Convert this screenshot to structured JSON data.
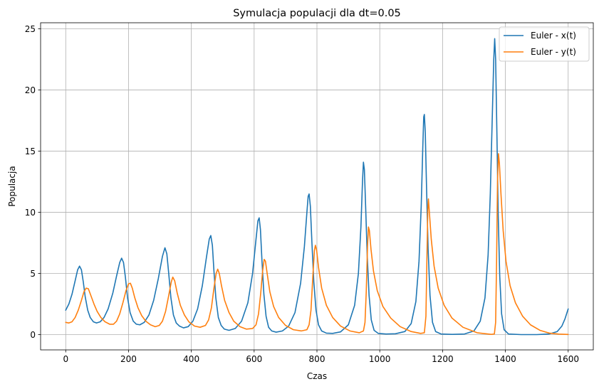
{
  "chart_data": {
    "type": "line",
    "title": "Symulacja populacji dla dt=0.05",
    "xlabel": "Czas",
    "ylabel": "Populacja",
    "xlim": [
      -80,
      1680
    ],
    "ylim": [
      -1.25,
      25.5
    ],
    "xticks": [
      0,
      200,
      400,
      600,
      800,
      1000,
      1200,
      1400,
      1600
    ],
    "yticks": [
      0,
      5,
      10,
      15,
      20,
      25
    ],
    "grid": true,
    "legend_position": "upper-right",
    "series": [
      {
        "name": "Euler - x(t)",
        "color": "#1f77b4",
        "points": [
          [
            0,
            2.0
          ],
          [
            10,
            2.5
          ],
          [
            20,
            3.3
          ],
          [
            30,
            4.4
          ],
          [
            38,
            5.3
          ],
          [
            44,
            5.6
          ],
          [
            50,
            5.3
          ],
          [
            56,
            4.3
          ],
          [
            62,
            3.1
          ],
          [
            70,
            2.0
          ],
          [
            78,
            1.4
          ],
          [
            88,
            1.05
          ],
          [
            98,
            0.95
          ],
          [
            110,
            1.05
          ],
          [
            122,
            1.4
          ],
          [
            135,
            2.1
          ],
          [
            150,
            3.4
          ],
          [
            162,
            4.8
          ],
          [
            172,
            5.9
          ],
          [
            178,
            6.25
          ],
          [
            184,
            5.9
          ],
          [
            190,
            4.7
          ],
          [
            197,
            3.0
          ],
          [
            205,
            1.8
          ],
          [
            215,
            1.1
          ],
          [
            225,
            0.85
          ],
          [
            236,
            0.8
          ],
          [
            250,
            1.0
          ],
          [
            265,
            1.6
          ],
          [
            280,
            2.8
          ],
          [
            295,
            4.6
          ],
          [
            308,
            6.4
          ],
          [
            316,
            7.1
          ],
          [
            322,
            6.6
          ],
          [
            328,
            5.0
          ],
          [
            335,
            3.0
          ],
          [
            343,
            1.6
          ],
          [
            352,
            0.95
          ],
          [
            362,
            0.7
          ],
          [
            375,
            0.55
          ],
          [
            390,
            0.65
          ],
          [
            405,
            1.1
          ],
          [
            420,
            2.1
          ],
          [
            435,
            4.0
          ],
          [
            448,
            6.3
          ],
          [
            457,
            7.8
          ],
          [
            462,
            8.1
          ],
          [
            467,
            7.3
          ],
          [
            472,
            5.2
          ],
          [
            478,
            3.0
          ],
          [
            486,
            1.4
          ],
          [
            495,
            0.75
          ],
          [
            505,
            0.45
          ],
          [
            520,
            0.35
          ],
          [
            540,
            0.5
          ],
          [
            560,
            1.1
          ],
          [
            580,
            2.6
          ],
          [
            595,
            5.0
          ],
          [
            606,
            7.8
          ],
          [
            612,
            9.3
          ],
          [
            616,
            9.55
          ],
          [
            620,
            8.6
          ],
          [
            625,
            6.0
          ],
          [
            631,
            3.3
          ],
          [
            638,
            1.5
          ],
          [
            646,
            0.6
          ],
          [
            656,
            0.3
          ],
          [
            670,
            0.2
          ],
          [
            690,
            0.3
          ],
          [
            710,
            0.7
          ],
          [
            730,
            1.8
          ],
          [
            748,
            4.2
          ],
          [
            760,
            7.2
          ],
          [
            768,
            10.0
          ],
          [
            772,
            11.3
          ],
          [
            775,
            11.5
          ],
          [
            779,
            10.5
          ],
          [
            784,
            7.5
          ],
          [
            790,
            4.3
          ],
          [
            797,
            2.0
          ],
          [
            805,
            0.8
          ],
          [
            815,
            0.3
          ],
          [
            830,
            0.12
          ],
          [
            850,
            0.1
          ],
          [
            875,
            0.22
          ],
          [
            900,
            0.8
          ],
          [
            920,
            2.4
          ],
          [
            932,
            5.0
          ],
          [
            940,
            8.8
          ],
          [
            945,
            12.5
          ],
          [
            948,
            14.1
          ],
          [
            951,
            13.5
          ],
          [
            955,
            10.5
          ],
          [
            960,
            6.5
          ],
          [
            966,
            3.2
          ],
          [
            973,
            1.2
          ],
          [
            982,
            0.35
          ],
          [
            995,
            0.1
          ],
          [
            1020,
            0.05
          ],
          [
            1050,
            0.07
          ],
          [
            1080,
            0.25
          ],
          [
            1100,
            0.9
          ],
          [
            1115,
            2.7
          ],
          [
            1125,
            6.0
          ],
          [
            1132,
            10.5
          ],
          [
            1137,
            15.3
          ],
          [
            1140,
            17.8
          ],
          [
            1142,
            18.0
          ],
          [
            1145,
            16.5
          ],
          [
            1149,
            12.0
          ],
          [
            1154,
            7.0
          ],
          [
            1160,
            3.2
          ],
          [
            1168,
            1.0
          ],
          [
            1178,
            0.25
          ],
          [
            1195,
            0.05
          ],
          [
            1230,
            0.02
          ],
          [
            1270,
            0.05
          ],
          [
            1300,
            0.3
          ],
          [
            1320,
            1.1
          ],
          [
            1335,
            3.0
          ],
          [
            1345,
            6.5
          ],
          [
            1352,
            11.5
          ],
          [
            1358,
            17.5
          ],
          [
            1363,
            22.5
          ],
          [
            1366,
            24.2
          ],
          [
            1369,
            22.5
          ],
          [
            1373,
            16.5
          ],
          [
            1377,
            10.0
          ],
          [
            1382,
            4.8
          ],
          [
            1388,
            1.7
          ],
          [
            1396,
            0.4
          ],
          [
            1410,
            0.05
          ],
          [
            1450,
            0.0
          ],
          [
            1500,
            0.0
          ],
          [
            1540,
            0.05
          ],
          [
            1565,
            0.25
          ],
          [
            1580,
            0.7
          ],
          [
            1590,
            1.3
          ],
          [
            1600,
            2.1
          ]
        ]
      },
      {
        "name": "Euler - y(t)",
        "color": "#ff7f0e",
        "points": [
          [
            0,
            1.0
          ],
          [
            10,
            0.95
          ],
          [
            20,
            1.05
          ],
          [
            30,
            1.4
          ],
          [
            40,
            2.0
          ],
          [
            50,
            2.8
          ],
          [
            58,
            3.5
          ],
          [
            65,
            3.8
          ],
          [
            72,
            3.75
          ],
          [
            80,
            3.2
          ],
          [
            90,
            2.5
          ],
          [
            100,
            1.9
          ],
          [
            112,
            1.4
          ],
          [
            125,
            1.05
          ],
          [
            140,
            0.85
          ],
          [
            152,
            0.85
          ],
          [
            162,
            1.1
          ],
          [
            172,
            1.7
          ],
          [
            182,
            2.6
          ],
          [
            192,
            3.6
          ],
          [
            200,
            4.15
          ],
          [
            206,
            4.2
          ],
          [
            212,
            3.8
          ],
          [
            220,
            3.0
          ],
          [
            230,
            2.2
          ],
          [
            242,
            1.55
          ],
          [
            255,
            1.1
          ],
          [
            270,
            0.8
          ],
          [
            285,
            0.65
          ],
          [
            298,
            0.75
          ],
          [
            308,
            1.1
          ],
          [
            318,
            1.9
          ],
          [
            328,
            3.2
          ],
          [
            336,
            4.3
          ],
          [
            341,
            4.7
          ],
          [
            347,
            4.4
          ],
          [
            355,
            3.4
          ],
          [
            365,
            2.4
          ],
          [
            378,
            1.6
          ],
          [
            392,
            1.05
          ],
          [
            410,
            0.7
          ],
          [
            428,
            0.6
          ],
          [
            445,
            0.75
          ],
          [
            455,
            1.2
          ],
          [
            464,
            2.2
          ],
          [
            472,
            3.8
          ],
          [
            479,
            5.0
          ],
          [
            484,
            5.35
          ],
          [
            489,
            5.0
          ],
          [
            496,
            4.0
          ],
          [
            506,
            2.8
          ],
          [
            520,
            1.8
          ],
          [
            535,
            1.1
          ],
          [
            555,
            0.65
          ],
          [
            575,
            0.45
          ],
          [
            595,
            0.5
          ],
          [
            606,
            0.8
          ],
          [
            614,
            1.7
          ],
          [
            621,
            3.4
          ],
          [
            627,
            5.2
          ],
          [
            632,
            6.15
          ],
          [
            636,
            6.0
          ],
          [
            642,
            4.9
          ],
          [
            650,
            3.5
          ],
          [
            662,
            2.3
          ],
          [
            678,
            1.4
          ],
          [
            700,
            0.75
          ],
          [
            725,
            0.4
          ],
          [
            750,
            0.3
          ],
          [
            768,
            0.4
          ],
          [
            775,
            0.8
          ],
          [
            781,
            2.0
          ],
          [
            787,
            4.8
          ],
          [
            792,
            6.9
          ],
          [
            795,
            7.3
          ],
          [
            799,
            6.9
          ],
          [
            805,
            5.5
          ],
          [
            815,
            3.8
          ],
          [
            830,
            2.4
          ],
          [
            850,
            1.4
          ],
          [
            875,
            0.7
          ],
          [
            905,
            0.3
          ],
          [
            935,
            0.15
          ],
          [
            948,
            0.3
          ],
          [
            953,
            1.0
          ],
          [
            957,
            3.5
          ],
          [
            961,
            7.2
          ],
          [
            964,
            8.8
          ],
          [
            967,
            8.5
          ],
          [
            972,
            7.0
          ],
          [
            980,
            5.2
          ],
          [
            992,
            3.6
          ],
          [
            1010,
            2.3
          ],
          [
            1035,
            1.35
          ],
          [
            1065,
            0.65
          ],
          [
            1100,
            0.25
          ],
          [
            1130,
            0.1
          ],
          [
            1142,
            0.15
          ],
          [
            1147,
            1.5
          ],
          [
            1150,
            6.0
          ],
          [
            1153,
            10.2
          ],
          [
            1155,
            11.1
          ],
          [
            1158,
            10.0
          ],
          [
            1164,
            7.8
          ],
          [
            1173,
            5.6
          ],
          [
            1186,
            3.8
          ],
          [
            1205,
            2.4
          ],
          [
            1230,
            1.35
          ],
          [
            1265,
            0.6
          ],
          [
            1310,
            0.15
          ],
          [
            1355,
            0.02
          ],
          [
            1365,
            0.05
          ],
          [
            1369,
            1.0
          ],
          [
            1372,
            6.0
          ],
          [
            1375,
            12.5
          ],
          [
            1378,
            14.8
          ],
          [
            1381,
            14.0
          ],
          [
            1386,
            11.5
          ],
          [
            1393,
            8.5
          ],
          [
            1402,
            6.0
          ],
          [
            1415,
            4.0
          ],
          [
            1432,
            2.6
          ],
          [
            1455,
            1.5
          ],
          [
            1480,
            0.8
          ],
          [
            1510,
            0.35
          ],
          [
            1540,
            0.12
          ],
          [
            1570,
            0.04
          ],
          [
            1600,
            0.01
          ]
        ]
      }
    ]
  }
}
